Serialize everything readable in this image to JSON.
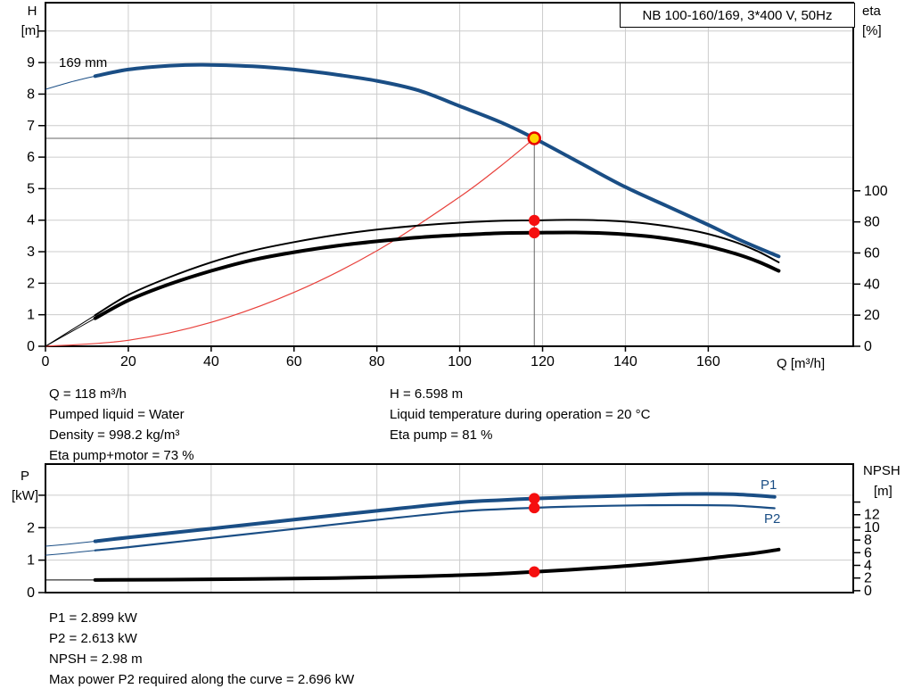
{
  "title_box": {
    "label": "NB 100-160/169, 3*400 V, 50Hz"
  },
  "axis_labels": {
    "head": "H",
    "head_unit": "[m]",
    "eta": "eta",
    "eta_unit": "[%]",
    "flow": "Q [m³/h]",
    "power": "P",
    "power_unit": "[kW]",
    "npsh": "NPSH",
    "npsh_unit": "[m]"
  },
  "info_duty": {
    "left": [
      "Q = 118 m³/h",
      "Pumped liquid = Water",
      "Density = 998.2 kg/m³",
      "Eta pump+motor = 73 %"
    ],
    "right": [
      "H = 6.598 m",
      "Liquid temperature during operation = 20 °C",
      "Eta pump = 81 %"
    ]
  },
  "info_power": [
    "P1 = 2.899 kW",
    "P2 = 2.613 kW",
    "NPSH = 2.98 m",
    "Max power P2 required along the curve = 2.696 kW"
  ],
  "colors": {
    "curve_blue": "#1a4e85",
    "curve_black": "#000000",
    "system_red": "#e8413c",
    "dot_red": "#f50f0f",
    "op_fill": "#ffd400",
    "op_ring": "#e60000",
    "grid": "#cccccc",
    "crosshair": "#666666",
    "axis": "#000000"
  },
  "chart_data": [
    {
      "type": "line",
      "title": "NB 100-160/169, 3*400 V, 50Hz",
      "xlabel": "Q [m³/h]",
      "ylabel_left": "H [m]",
      "ylabel_right": "eta [%]",
      "xlim": [
        0,
        195
      ],
      "ylim_left": [
        0,
        10.9
      ],
      "ylim_right": [
        0,
        221
      ],
      "x_ticks": [
        0,
        20,
        40,
        60,
        80,
        100,
        120,
        140,
        160
      ],
      "show_x_tick_labels": true,
      "y_left_ticks": [
        0,
        1,
        2,
        3,
        4,
        5,
        6,
        7,
        8,
        9
      ],
      "y_left_ticks_unlabeled": [
        10
      ],
      "y_right_ticks": [
        0,
        20,
        40,
        60,
        80,
        100
      ],
      "y_right_ticks_unlabeled": [],
      "grid_x": [
        20,
        40,
        60,
        80,
        100,
        120,
        140,
        160
      ],
      "grid_y_left": [
        1,
        2,
        3,
        4,
        5,
        6,
        7,
        8,
        9,
        10
      ],
      "crosshair": {
        "q": 118,
        "value": 6.598,
        "axis": "left"
      },
      "series": [
        {
          "name": "system-curve",
          "axis": "left",
          "color_key": "system_red",
          "width": 1.2,
          "points": [
            [
              0,
              0
            ],
            [
              20,
              0.19
            ],
            [
              40,
              0.76
            ],
            [
              60,
              1.71
            ],
            [
              80,
              3.03
            ],
            [
              100,
              4.74
            ],
            [
              110,
              5.73
            ],
            [
              118,
              6.598
            ]
          ]
        },
        {
          "name": "eta-pump-curve",
          "axis": "right",
          "color_key": "curve_black",
          "width": 2,
          "lead_thin_until": 12,
          "points": [
            [
              0,
              0
            ],
            [
              6,
              10
            ],
            [
              12,
              20
            ],
            [
              20,
              33
            ],
            [
              30,
              44.5
            ],
            [
              40,
              54
            ],
            [
              50,
              61.5
            ],
            [
              60,
              67
            ],
            [
              70,
              71.5
            ],
            [
              80,
              75
            ],
            [
              90,
              77.6
            ],
            [
              100,
              79.5
            ],
            [
              110,
              80.7
            ],
            [
              118,
              81
            ],
            [
              128,
              81.3
            ],
            [
              138,
              80.5
            ],
            [
              148,
              78
            ],
            [
              158,
              73.5
            ],
            [
              166,
              67.5
            ],
            [
              172,
              61
            ],
            [
              177,
              54
            ]
          ]
        },
        {
          "name": "eta-pump-motor-curve",
          "axis": "right",
          "color_key": "curve_black",
          "width": 4,
          "lead_thin_until": 12,
          "points": [
            [
              0,
              0
            ],
            [
              6,
              9
            ],
            [
              12,
              18
            ],
            [
              20,
              29.5
            ],
            [
              30,
              40
            ],
            [
              40,
              48.5
            ],
            [
              50,
              55.5
            ],
            [
              60,
              60.5
            ],
            [
              70,
              64.5
            ],
            [
              80,
              67.5
            ],
            [
              90,
              70
            ],
            [
              100,
              71.6
            ],
            [
              110,
              72.8
            ],
            [
              118,
              73
            ],
            [
              128,
              73.2
            ],
            [
              138,
              72.3
            ],
            [
              148,
              70
            ],
            [
              158,
              65.5
            ],
            [
              166,
              60
            ],
            [
              172,
              54.5
            ],
            [
              177,
              48.5
            ]
          ]
        },
        {
          "name": "head-curve-169mm",
          "label": "169 mm",
          "axis": "left",
          "color_key": "curve_blue",
          "width": 4,
          "lead_thin_until": 12,
          "points": [
            [
              0,
              8.15
            ],
            [
              6,
              8.38
            ],
            [
              12,
              8.57
            ],
            [
              20,
              8.78
            ],
            [
              30,
              8.9
            ],
            [
              38,
              8.93
            ],
            [
              50,
              8.88
            ],
            [
              60,
              8.78
            ],
            [
              70,
              8.62
            ],
            [
              80,
              8.42
            ],
            [
              90,
              8.12
            ],
            [
              100,
              7.62
            ],
            [
              110,
              7.1
            ],
            [
              118,
              6.598
            ],
            [
              130,
              5.75
            ],
            [
              140,
              5.05
            ],
            [
              150,
              4.45
            ],
            [
              160,
              3.85
            ],
            [
              168,
              3.35
            ],
            [
              177,
              2.85
            ]
          ]
        }
      ],
      "markers": [
        {
          "name": "duty-point-eta-pump",
          "q": 118,
          "value": 81,
          "axis": "right",
          "style": "dot"
        },
        {
          "name": "duty-point-eta-pump-motor",
          "q": 118,
          "value": 73,
          "axis": "right",
          "style": "dot"
        },
        {
          "name": "operating-point",
          "q": 118,
          "value": 6.598,
          "axis": "left",
          "style": "op"
        }
      ]
    },
    {
      "type": "line",
      "title": "",
      "xlabel": "",
      "ylabel_left": "P [kW]",
      "ylabel_right": "NPSH [m]",
      "xlim": [
        0,
        195
      ],
      "ylim_left": [
        0,
        3.96
      ],
      "ylim_right": [
        -0.3,
        20.0
      ],
      "x_ticks": [],
      "show_x_tick_labels": false,
      "y_left_ticks": [
        0,
        1,
        2
      ],
      "y_left_ticks_unlabeled": [
        3
      ],
      "y_right_ticks": [
        0,
        2,
        4,
        6,
        8,
        10,
        12
      ],
      "y_right_ticks_unlabeled": [
        14
      ],
      "grid_x": [
        20,
        40,
        60,
        80,
        100,
        120,
        140,
        160
      ],
      "grid_y_left": [
        1,
        2,
        3
      ],
      "crosshair": null,
      "series": [
        {
          "name": "p1-power-curve",
          "label": "P1",
          "axis": "left",
          "color_key": "curve_blue",
          "width": 4,
          "lead_thin_until": 12,
          "points": [
            [
              0,
              1.43
            ],
            [
              6,
              1.5
            ],
            [
              12,
              1.58
            ],
            [
              20,
              1.7
            ],
            [
              40,
              1.97
            ],
            [
              60,
              2.25
            ],
            [
              80,
              2.52
            ],
            [
              100,
              2.78
            ],
            [
              110,
              2.85
            ],
            [
              118,
              2.899
            ],
            [
              130,
              2.95
            ],
            [
              144,
              3.0
            ],
            [
              155,
              3.04
            ],
            [
              166,
              3.03
            ],
            [
              176,
              2.95
            ]
          ]
        },
        {
          "name": "p2-power-curve",
          "label": "P2",
          "axis": "left",
          "color_key": "curve_blue",
          "width": 2.2,
          "lead_thin_until": 12,
          "points": [
            [
              0,
              1.15
            ],
            [
              6,
              1.22
            ],
            [
              12,
              1.3
            ],
            [
              20,
              1.4
            ],
            [
              40,
              1.68
            ],
            [
              60,
              1.96
            ],
            [
              80,
              2.24
            ],
            [
              100,
              2.5
            ],
            [
              110,
              2.57
            ],
            [
              118,
              2.613
            ],
            [
              130,
              2.66
            ],
            [
              144,
              2.69
            ],
            [
              155,
              2.696
            ],
            [
              166,
              2.68
            ],
            [
              176,
              2.6
            ]
          ]
        },
        {
          "name": "npsh-curve",
          "axis": "right",
          "color_key": "curve_black",
          "width": 4,
          "lead_thin_until": 12,
          "points": [
            [
              0,
              1.7
            ],
            [
              12,
              1.7
            ],
            [
              30,
              1.75
            ],
            [
              50,
              1.85
            ],
            [
              70,
              2.0
            ],
            [
              90,
              2.25
            ],
            [
              105,
              2.55
            ],
            [
              118,
              2.98
            ],
            [
              130,
              3.45
            ],
            [
              142,
              4.0
            ],
            [
              154,
              4.7
            ],
            [
              164,
              5.4
            ],
            [
              171,
              5.9
            ],
            [
              177,
              6.5
            ]
          ]
        }
      ],
      "markers": [
        {
          "name": "duty-point-p1",
          "q": 118,
          "value": 2.899,
          "axis": "left",
          "style": "dot"
        },
        {
          "name": "duty-point-p2",
          "q": 118,
          "value": 2.613,
          "axis": "left",
          "style": "dot"
        },
        {
          "name": "duty-point-npsh",
          "q": 118,
          "value": 2.98,
          "axis": "right",
          "style": "dot"
        }
      ]
    }
  ]
}
